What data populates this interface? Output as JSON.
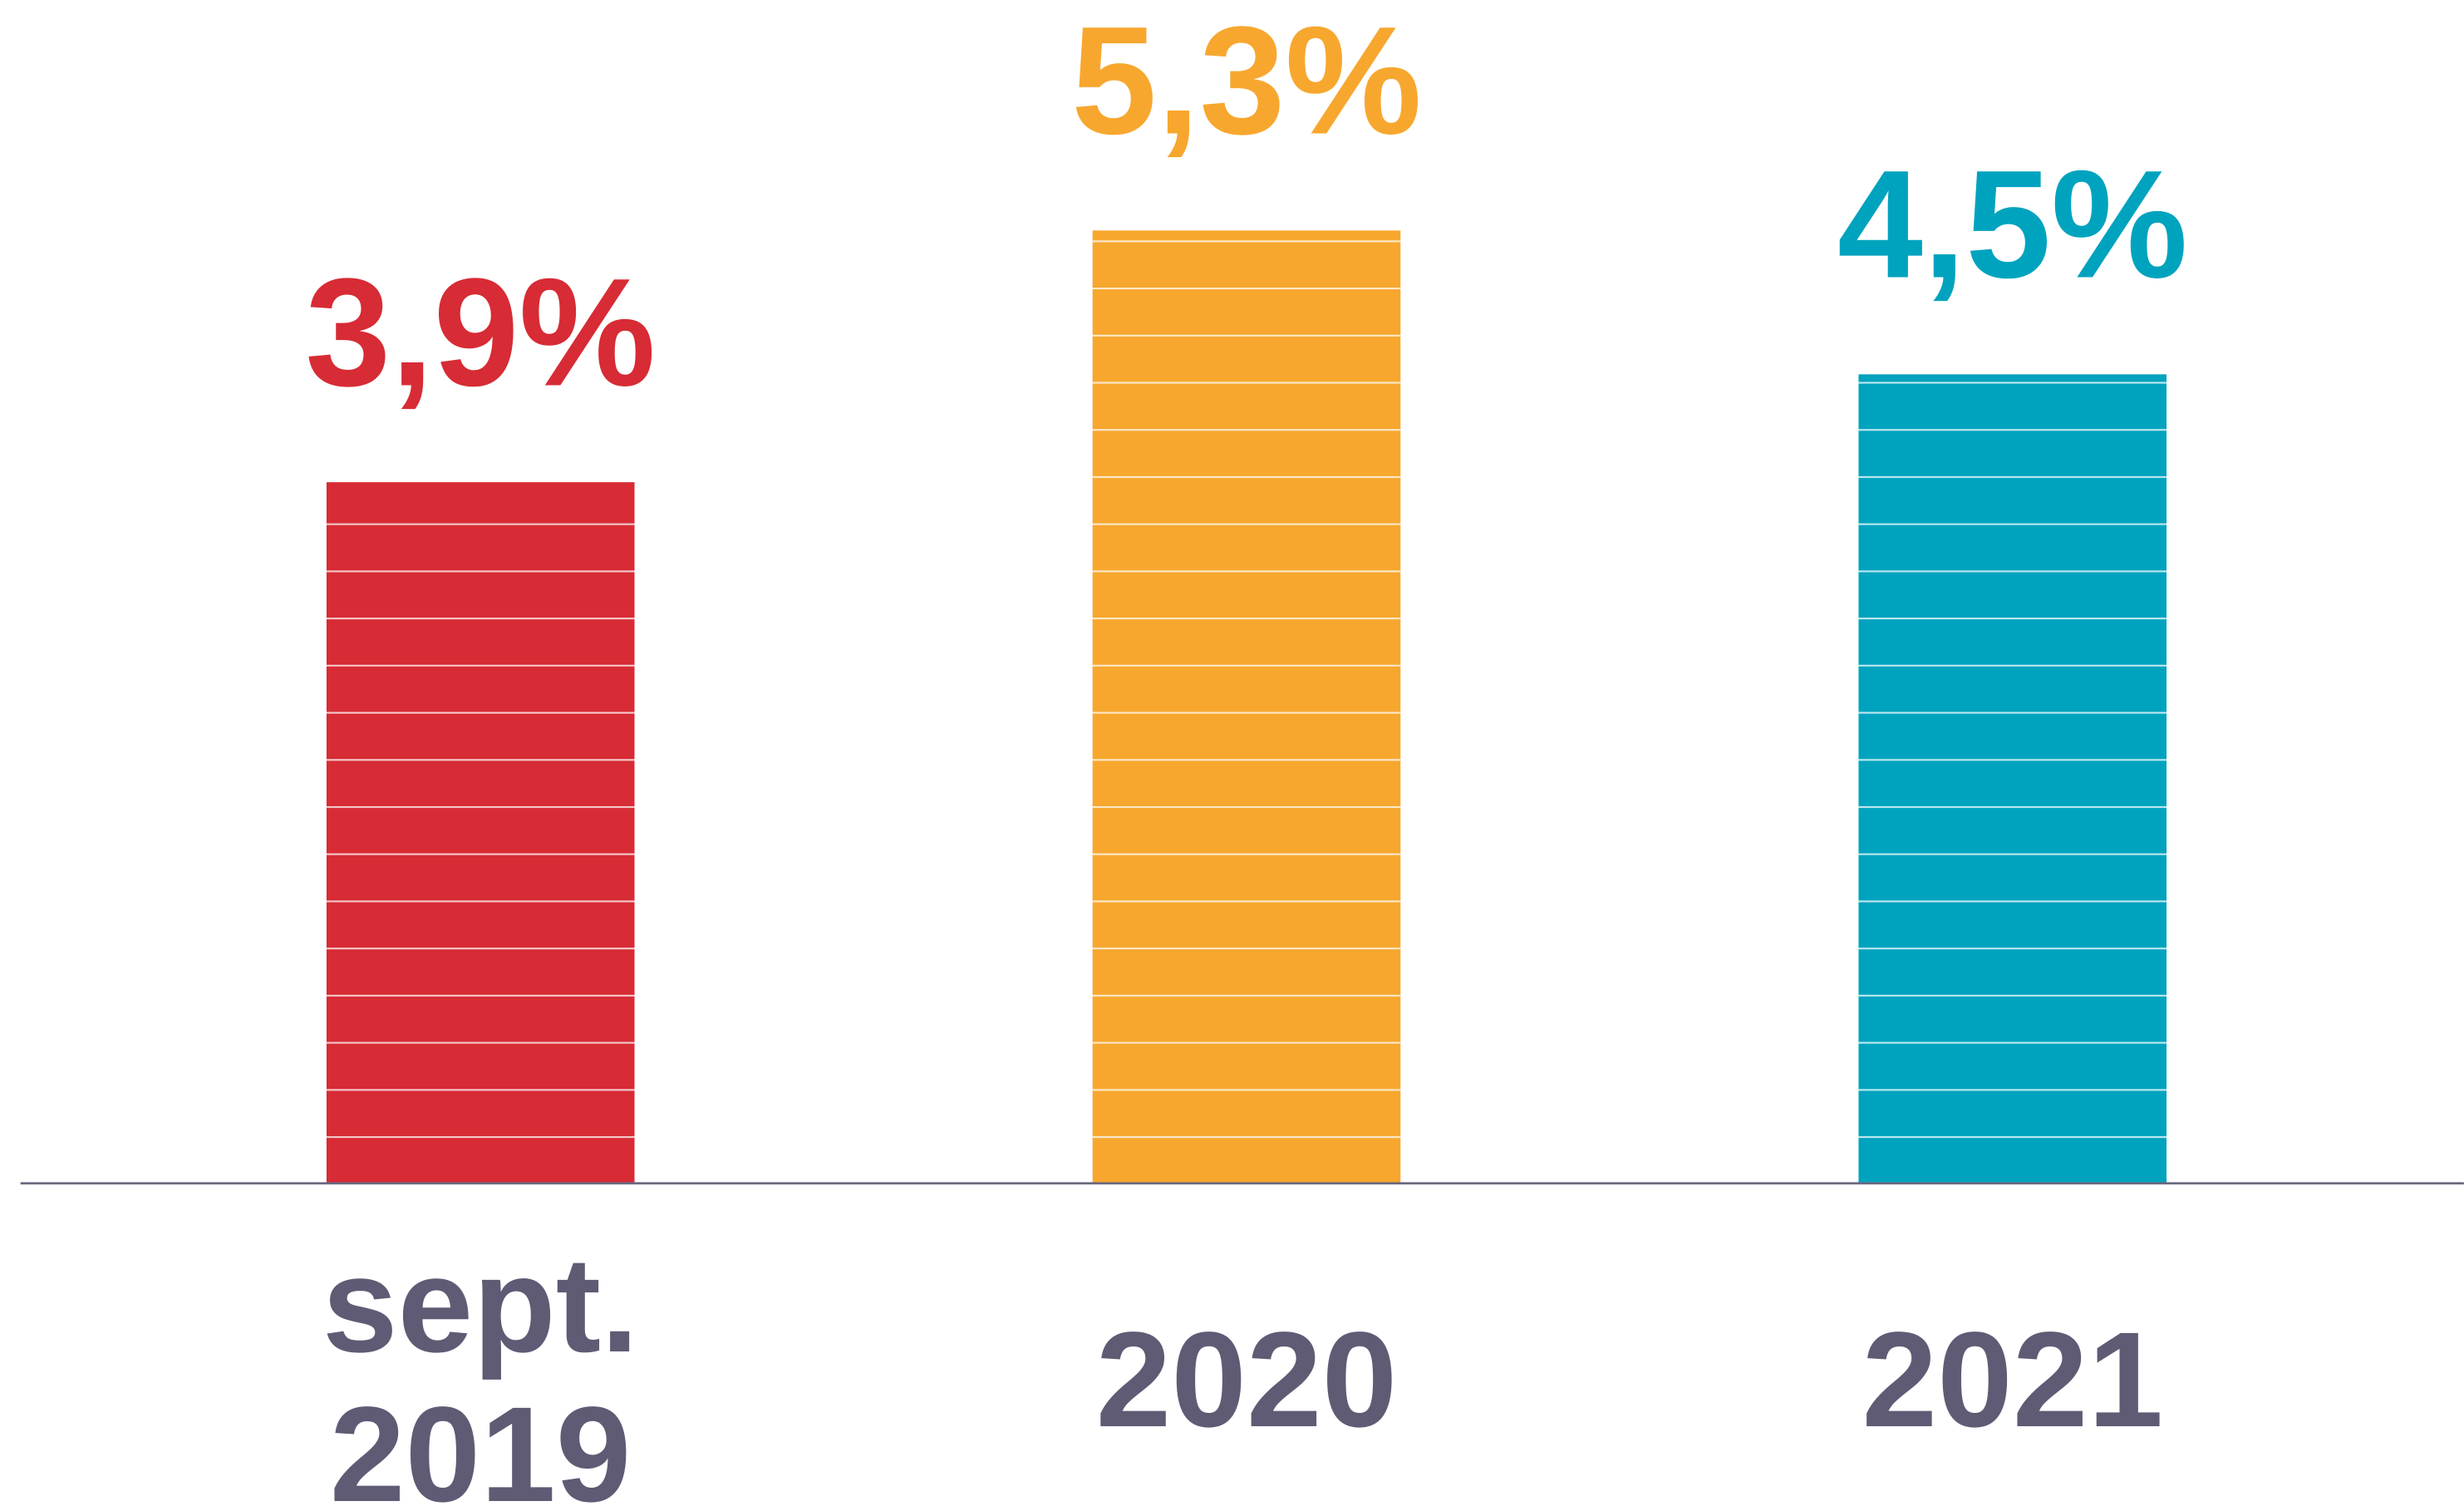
{
  "chart_data": {
    "type": "bar",
    "categories": [
      "sept. 2019",
      "2020",
      "2021"
    ],
    "values": [
      3.9,
      5.3,
      4.5
    ],
    "value_labels": [
      "3,9%",
      "5,3%",
      "4,5%"
    ],
    "colors": [
      "#d72b35",
      "#f7a72e",
      "#00a3be"
    ],
    "ylim": [
      0,
      6.5
    ]
  }
}
